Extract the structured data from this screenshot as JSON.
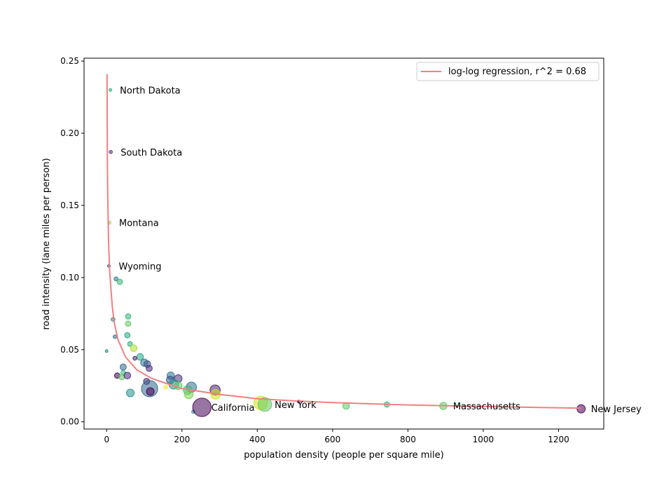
{
  "chart_data": {
    "type": "scatter",
    "xlabel": "population density (people per square mile)",
    "ylabel": "road intensity (lane miles per person)",
    "xlim": [
      -60,
      1320
    ],
    "ylim": [
      -0.005,
      0.252
    ],
    "xticks": [
      0,
      200,
      400,
      600,
      800,
      1000,
      1200
    ],
    "yticks": [
      0.0,
      0.05,
      0.1,
      0.15,
      0.2,
      0.25
    ],
    "xtick_labels": [
      "0",
      "200",
      "400",
      "600",
      "800",
      "1000",
      "1200"
    ],
    "ytick_labels": [
      "0.00",
      "0.05",
      "0.10",
      "0.15",
      "0.20",
      "0.25"
    ],
    "grid": false,
    "legend_position": "top-right",
    "legend": [
      "log-log regression, r^2 = 0.68"
    ],
    "regression_color": "#f08080",
    "regression_line": {
      "x": [
        1,
        2,
        3,
        5,
        8,
        12,
        15,
        20,
        30,
        50,
        80,
        120,
        200,
        300,
        400,
        500,
        600,
        800,
        1000,
        1260
      ],
      "y": [
        0.241,
        0.181,
        0.155,
        0.126,
        0.104,
        0.09,
        0.08,
        0.069,
        0.057,
        0.045,
        0.036,
        0.03,
        0.023,
        0.019,
        0.016,
        0.0145,
        0.0133,
        0.0117,
        0.0106,
        0.0095
      ]
    },
    "points": [
      {
        "x": 10,
        "y": 0.23,
        "size": 12,
        "color": "#2db27d"
      },
      {
        "x": 11,
        "y": 0.187,
        "size": 14,
        "color": "#443983"
      },
      {
        "x": 7,
        "y": 0.138,
        "size": 14,
        "color": "#8fd744"
      },
      {
        "x": 6,
        "y": 0.108,
        "size": 10,
        "color": "#3b528b"
      },
      {
        "x": 25,
        "y": 0.099,
        "size": 22,
        "color": "#2c728e"
      },
      {
        "x": 35,
        "y": 0.097,
        "size": 40,
        "color": "#35b779"
      },
      {
        "x": 17,
        "y": 0.071,
        "size": 20,
        "color": "#21918c"
      },
      {
        "x": 57,
        "y": 0.073,
        "size": 40,
        "color": "#35b779"
      },
      {
        "x": 57,
        "y": 0.068,
        "size": 40,
        "color": "#5ec962"
      },
      {
        "x": 55,
        "y": 0.06,
        "size": 40,
        "color": "#21a585"
      },
      {
        "x": 22,
        "y": 0.059,
        "size": 18,
        "color": "#2c728e"
      },
      {
        "x": 62,
        "y": 0.054,
        "size": 30,
        "color": "#28ae80"
      },
      {
        "x": 72,
        "y": 0.051,
        "size": 60,
        "color": "#addc30"
      },
      {
        "x": 0,
        "y": 0.049,
        "size": 10,
        "color": "#21918c"
      },
      {
        "x": 89,
        "y": 0.045,
        "size": 60,
        "color": "#22a884"
      },
      {
        "x": 75,
        "y": 0.044,
        "size": 20,
        "color": "#482878"
      },
      {
        "x": 100,
        "y": 0.041,
        "size": 70,
        "color": "#2c728e"
      },
      {
        "x": 108,
        "y": 0.04,
        "size": 60,
        "color": "#3b528b"
      },
      {
        "x": 113,
        "y": 0.037,
        "size": 50,
        "color": "#482878"
      },
      {
        "x": 44,
        "y": 0.038,
        "size": 50,
        "color": "#31688e"
      },
      {
        "x": 44,
        "y": 0.034,
        "size": 30,
        "color": "#35b779"
      },
      {
        "x": 28,
        "y": 0.032,
        "size": 40,
        "color": "#440154"
      },
      {
        "x": 40,
        "y": 0.031,
        "size": 40,
        "color": "#5ec962"
      },
      {
        "x": 55,
        "y": 0.032,
        "size": 60,
        "color": "#482878"
      },
      {
        "x": 106,
        "y": 0.028,
        "size": 50,
        "color": "#481f70"
      },
      {
        "x": 170,
        "y": 0.032,
        "size": 70,
        "color": "#2c728e"
      },
      {
        "x": 169,
        "y": 0.029,
        "size": 80,
        "color": "#3b528b"
      },
      {
        "x": 190,
        "y": 0.03,
        "size": 80,
        "color": "#46337e"
      },
      {
        "x": 178,
        "y": 0.026,
        "size": 120,
        "color": "#21918c"
      },
      {
        "x": 190,
        "y": 0.025,
        "size": 80,
        "color": "#5ec962"
      },
      {
        "x": 157,
        "y": 0.024,
        "size": 20,
        "color": "#fde725"
      },
      {
        "x": 114,
        "y": 0.023,
        "size": 350,
        "color": "#31688e"
      },
      {
        "x": 116,
        "y": 0.021,
        "size": 80,
        "color": "#440154"
      },
      {
        "x": 63,
        "y": 0.02,
        "size": 80,
        "color": "#21918c"
      },
      {
        "x": 225,
        "y": 0.024,
        "size": 140,
        "color": "#2c728e"
      },
      {
        "x": 215,
        "y": 0.022,
        "size": 100,
        "color": "#3aba76"
      },
      {
        "x": 218,
        "y": 0.019,
        "size": 100,
        "color": "#7ad151"
      },
      {
        "x": 288,
        "y": 0.022,
        "size": 140,
        "color": "#481f70"
      },
      {
        "x": 289,
        "y": 0.019,
        "size": 120,
        "color": "#d2e21b"
      },
      {
        "x": 230,
        "y": 0.007,
        "size": 14,
        "color": "#21918c"
      },
      {
        "x": 253,
        "y": 0.01,
        "size": 450,
        "color": "#440154"
      },
      {
        "x": 409,
        "y": 0.013,
        "size": 250,
        "color": "#d2e21b"
      },
      {
        "x": 420,
        "y": 0.012,
        "size": 250,
        "color": "#5ec962"
      },
      {
        "x": 510,
        "y": 0.014,
        "size": 12,
        "color": "#482878"
      },
      {
        "x": 636,
        "y": 0.011,
        "size": 60,
        "color": "#5ec962"
      },
      {
        "x": 744,
        "y": 0.012,
        "size": 40,
        "color": "#35b779"
      },
      {
        "x": 894,
        "y": 0.011,
        "size": 70,
        "color": "#5ec962"
      },
      {
        "x": 1260,
        "y": 0.009,
        "size": 90,
        "color": "#440154"
      }
    ],
    "annotations": [
      {
        "text": "North Dakota",
        "x": 35,
        "y": 0.23
      },
      {
        "text": "South Dakota",
        "x": 37,
        "y": 0.187
      },
      {
        "text": "Montana",
        "x": 33,
        "y": 0.138
      },
      {
        "text": "Wyoming",
        "x": 32,
        "y": 0.108
      },
      {
        "text": "California",
        "x": 278,
        "y": 0.01
      },
      {
        "text": "New York",
        "x": 446,
        "y": 0.012
      },
      {
        "text": "Massachusetts",
        "x": 920,
        "y": 0.011
      },
      {
        "text": "New Jersey",
        "x": 1286,
        "y": 0.009
      }
    ]
  }
}
